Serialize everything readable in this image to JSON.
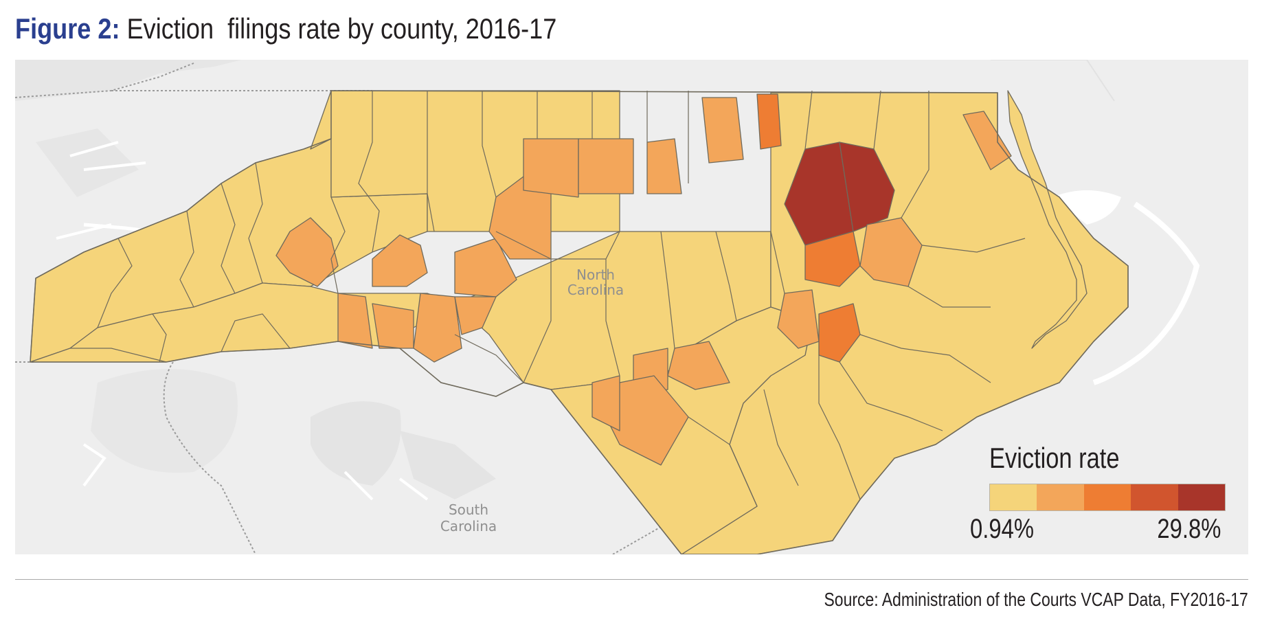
{
  "figure": {
    "label": "Figure 2:",
    "title": "Eviction  filings rate by county, 2016-17"
  },
  "map": {
    "state_label_line1": "North",
    "state_label_line2": "Carolina",
    "neighbor_label_line1": "South",
    "neighbor_label_line2": "Carolina",
    "base_color": "#eeeeee",
    "county_border_color": "#6f6a5c"
  },
  "legend": {
    "title": "Eviction rate",
    "min_label": "0.94%",
    "max_label": "29.8%",
    "bins": [
      "#f5d47a",
      "#f3a65a",
      "#ee7d33",
      "#d1552e",
      "#a8352a"
    ]
  },
  "source": "Source: Administration of the Courts VCAP Data, FY2016-17"
}
